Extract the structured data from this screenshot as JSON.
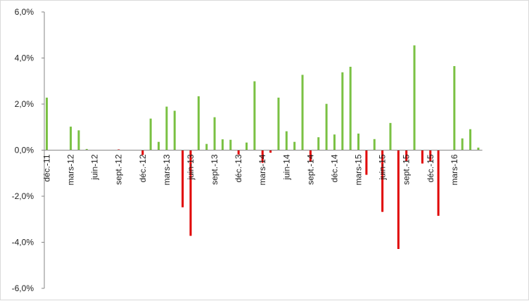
{
  "chart_data": {
    "type": "bar",
    "title": "",
    "xlabel": "",
    "ylabel": "",
    "ylim": [
      -0.06,
      0.06
    ],
    "yticks": [
      0.06,
      0.04,
      0.02,
      0.0,
      -0.02,
      -0.04,
      -0.06
    ],
    "ytick_labels": [
      "6,0%",
      "4,0%",
      "2,0%",
      "0,0%",
      "-2,0%",
      "-4,0%",
      "-6,0%"
    ],
    "categories": [
      "déc.-11",
      "janv.-12",
      "févr.-12",
      "mars-12",
      "avr.-12",
      "mai-12",
      "juin-12",
      "juil.-12",
      "août-12",
      "sept.-12",
      "oct.-12",
      "nov.-12",
      "déc.-12",
      "janv.-13",
      "févr.-13",
      "mars-13",
      "avr.-13",
      "mai-13",
      "juin-13",
      "juil.-13",
      "août-13",
      "sept.-13",
      "oct.-13",
      "nov.-13",
      "déc.-13",
      "janv.-14",
      "févr.-14",
      "mars-14",
      "avr.-14",
      "mai-14",
      "juin-14",
      "juil.-14",
      "août-14",
      "sept.-14",
      "oct.-14",
      "nov.-14",
      "déc.-14",
      "janv.-15",
      "févr.-15",
      "mars-15",
      "avr.-15",
      "mai-15",
      "juin-15",
      "juil.-15",
      "août-15",
      "sept.-15",
      "oct.-15",
      "nov.-15",
      "déc.-15",
      "janv.-16",
      "févr.-16",
      "mars-16",
      "avr.-16",
      "mai-16",
      "juin-16"
    ],
    "xtick_labels": [
      {
        "index": 0,
        "label": "déc.-11"
      },
      {
        "index": 3,
        "label": "mars-12"
      },
      {
        "index": 6,
        "label": "juin-12"
      },
      {
        "index": 9,
        "label": "sept.-12"
      },
      {
        "index": 12,
        "label": "déc.-12"
      },
      {
        "index": 15,
        "label": "mars-13"
      },
      {
        "index": 18,
        "label": "juin-13"
      },
      {
        "index": 21,
        "label": "sept.-13"
      },
      {
        "index": 24,
        "label": "déc.-13"
      },
      {
        "index": 27,
        "label": "mars-14"
      },
      {
        "index": 30,
        "label": "juin-14"
      },
      {
        "index": 33,
        "label": "sept.-14"
      },
      {
        "index": 36,
        "label": "déc.-14"
      },
      {
        "index": 39,
        "label": "mars-15"
      },
      {
        "index": 42,
        "label": "juin-15"
      },
      {
        "index": 45,
        "label": "sept.-15"
      },
      {
        "index": 48,
        "label": "déc.-15"
      },
      {
        "index": 51,
        "label": "mars-16"
      }
    ],
    "series": [
      {
        "color": "#7ac143",
        "values": [
          0.0228,
          0,
          0,
          0.0102,
          0.0086,
          0.0005,
          0,
          0,
          0,
          0,
          0,
          0,
          0,
          0.0137,
          0.0036,
          0.0189,
          0.0171,
          0,
          0,
          0.0234,
          0.0027,
          0.0143,
          0.0047,
          0.0045,
          0,
          0.0033,
          0.0299,
          0,
          0,
          0.0228,
          0.0082,
          0.0036,
          0.0327,
          0,
          0.0056,
          0.0201,
          0.0068,
          0.0338,
          0.0362,
          0.0072,
          0,
          0.0048,
          0,
          0.0118,
          0,
          0,
          0.0455,
          0,
          0,
          0,
          0,
          0.0365,
          0.0051,
          0.0091,
          0.0011
        ]
      },
      {
        "color": "#e00000",
        "values": [
          0,
          0,
          0,
          0,
          0,
          0,
          0,
          0,
          0,
          0.0003,
          0,
          0,
          -0.0021,
          0,
          0,
          0,
          0,
          -0.0248,
          -0.0372,
          0,
          0,
          0,
          0,
          0,
          -0.0019,
          0,
          0,
          -0.0055,
          -0.0011,
          0,
          0,
          0,
          0,
          -0.0051,
          0,
          0,
          0,
          0,
          0,
          0,
          -0.0107,
          0,
          -0.0268,
          0,
          -0.0429,
          -0.0047,
          0,
          -0.0058,
          -0.0047,
          -0.0285,
          0,
          0,
          0,
          0,
          0
        ]
      }
    ],
    "grid": false,
    "legend": "none"
  }
}
